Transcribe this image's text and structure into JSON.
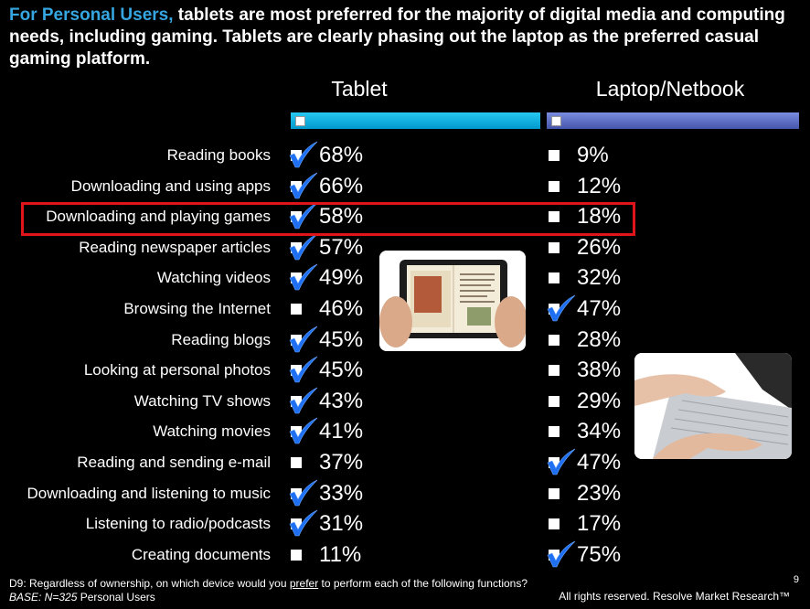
{
  "headline": {
    "lead": "For Personal Users,",
    "rest": " tablets are most preferred for the majority of digital media and computing needs, including gaming. Tablets are clearly phasing out the laptop as the preferred casual gaming platform."
  },
  "chart_data": {
    "type": "table",
    "series": [
      {
        "name": "Tablet",
        "values": [
          68,
          66,
          58,
          57,
          49,
          46,
          45,
          45,
          43,
          41,
          37,
          33,
          31,
          11
        ],
        "labels": [
          "68%",
          "66%",
          "58%",
          "57%",
          "49%",
          "46%",
          "45%",
          "45%",
          "43%",
          "41%",
          "37%",
          "33%",
          "31%",
          "11%"
        ]
      },
      {
        "name": "Laptop/Netbook",
        "values": [
          9,
          12,
          18,
          26,
          32,
          47,
          28,
          38,
          29,
          34,
          47,
          23,
          17,
          75
        ],
        "labels": [
          "9%",
          "12%",
          "18%",
          "26%",
          "32%",
          "47%",
          "28%",
          "38%",
          "29%",
          "34%",
          "47%",
          "23%",
          "17%",
          "75%"
        ]
      }
    ],
    "categories": [
      "Reading books",
      "Downloading and using apps",
      "Downloading and playing games",
      "Reading newspaper articles",
      "Watching videos",
      "Browsing the Internet",
      "Reading blogs",
      "Looking at personal photos",
      "Watching TV shows",
      "Watching movies",
      "Reading and sending e-mail",
      "Downloading and listening to music",
      "Listening to radio/podcasts",
      "Creating documents"
    ],
    "preferred": [
      "Tablet",
      "Tablet",
      "Tablet",
      "Tablet",
      "Tablet",
      "Laptop/Netbook",
      "Tablet",
      "Tablet",
      "Tablet",
      "Tablet",
      "Laptop/Netbook",
      "Tablet",
      "Tablet",
      "Laptop/Netbook"
    ],
    "highlighted_category": "Downloading and playing games"
  },
  "colors": {
    "tablet_bar": "#00b3e6",
    "laptop_bar": "#5a6fc7",
    "lead": "#35a6e0",
    "highlight": "#e0141b",
    "check": "#1e6ff2"
  },
  "images": {
    "tablet_photo": "hands-holding-tablet-ebook",
    "laptop_photo": "hands-typing-on-laptop"
  },
  "footer": {
    "question_pre": "D9: Regardless of ownership, on which device would you ",
    "question_em": "prefer",
    "question_post": " to perform each of the following functions?",
    "base_label": "BASE: N=325",
    "base_rest": " Personal Users",
    "page_number": "9",
    "copyright": "All rights reserved. Resolve Market Research™"
  }
}
